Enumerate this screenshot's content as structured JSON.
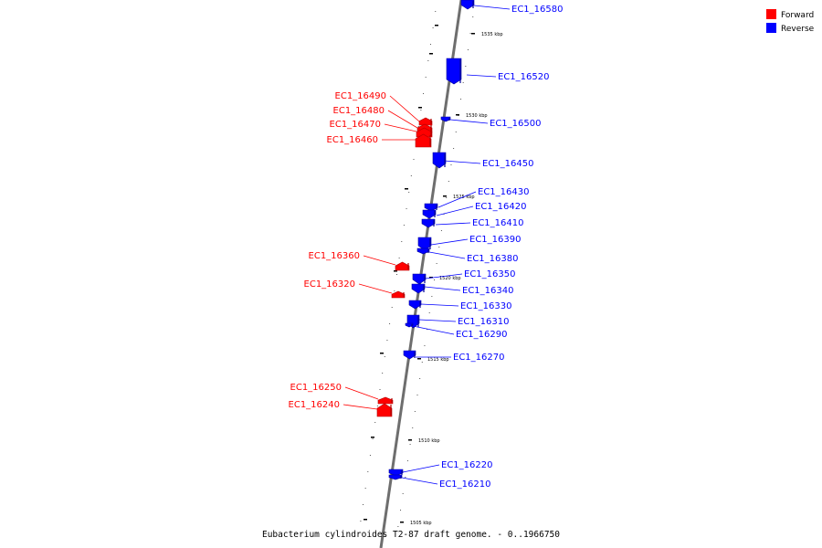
{
  "caption": "Eubacterium cylindroides T2-87 draft genome. - 0..1966750",
  "legend": [
    {
      "label": "Forward",
      "color": "#ff0000"
    },
    {
      "label": "Reverse",
      "color": "#0000ff"
    }
  ],
  "ticks": [
    "1535 kbp",
    "1530 kbp",
    "1525 kbp",
    "1520 kbp",
    "1515 kbp",
    "1510 kbp",
    "1505 kbp"
  ],
  "genes": [
    {
      "name": "EC1_16580",
      "strand": "Reverse"
    },
    {
      "name": "EC1_16520",
      "strand": "Reverse"
    },
    {
      "name": "EC1_16500",
      "strand": "Reverse"
    },
    {
      "name": "EC1_16490",
      "strand": "Forward"
    },
    {
      "name": "EC1_16480",
      "strand": "Forward"
    },
    {
      "name": "EC1_16470",
      "strand": "Forward"
    },
    {
      "name": "EC1_16460",
      "strand": "Forward"
    },
    {
      "name": "EC1_16450",
      "strand": "Reverse"
    },
    {
      "name": "EC1_16430",
      "strand": "Reverse"
    },
    {
      "name": "EC1_16420",
      "strand": "Reverse"
    },
    {
      "name": "EC1_16410",
      "strand": "Reverse"
    },
    {
      "name": "EC1_16390",
      "strand": "Reverse"
    },
    {
      "name": "EC1_16380",
      "strand": "Reverse"
    },
    {
      "name": "EC1_16360",
      "strand": "Forward"
    },
    {
      "name": "EC1_16350",
      "strand": "Reverse"
    },
    {
      "name": "EC1_16340",
      "strand": "Reverse"
    },
    {
      "name": "EC1_16330",
      "strand": "Reverse"
    },
    {
      "name": "EC1_16320",
      "strand": "Forward"
    },
    {
      "name": "EC1_16310",
      "strand": "Reverse"
    },
    {
      "name": "EC1_16290",
      "strand": "Reverse"
    },
    {
      "name": "EC1_16270",
      "strand": "Reverse"
    },
    {
      "name": "EC1_16250",
      "strand": "Forward"
    },
    {
      "name": "EC1_16240",
      "strand": "Forward"
    },
    {
      "name": "EC1_16220",
      "strand": "Reverse"
    },
    {
      "name": "EC1_16210",
      "strand": "Reverse"
    }
  ]
}
